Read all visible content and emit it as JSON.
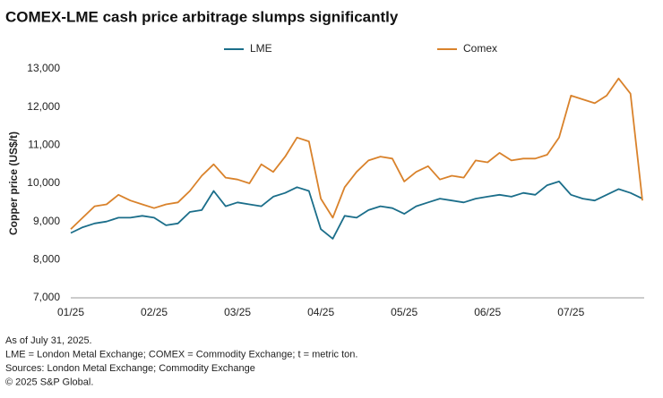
{
  "chart_data": {
    "type": "line",
    "title": "COMEX-LME cash price arbitrage slumps significantly",
    "y_label": "Copper price (US$/t)",
    "categories": [
      "01/25",
      null,
      null,
      null,
      null,
      null,
      null,
      "02/25",
      null,
      null,
      null,
      null,
      null,
      null,
      "03/25",
      null,
      null,
      null,
      null,
      null,
      null,
      "04/25",
      null,
      null,
      null,
      null,
      null,
      null,
      "05/25",
      null,
      null,
      null,
      null,
      null,
      null,
      "06/25",
      null,
      null,
      null,
      null,
      null,
      null,
      "07/25",
      null,
      null,
      null,
      null,
      null,
      null
    ],
    "series": [
      {
        "name": "LME",
        "color": "#1b6e8a",
        "values": [
          8700,
          8850,
          8950,
          9000,
          9100,
          9100,
          9150,
          9100,
          8900,
          8950,
          9250,
          9300,
          9800,
          9400,
          9500,
          9450,
          9400,
          9650,
          9750,
          9900,
          9800,
          8800,
          8550,
          9150,
          9100,
          9300,
          9400,
          9350,
          9200,
          9400,
          9500,
          9600,
          9550,
          9500,
          9600,
          9650,
          9700,
          9650,
          9750,
          9700,
          9950,
          10050,
          9700,
          9600,
          9550,
          9700,
          9850,
          9750,
          9600
        ]
      },
      {
        "name": "Comex",
        "color": "#d9822b",
        "values": [
          8800,
          9100,
          9400,
          9450,
          9700,
          9550,
          9450,
          9350,
          9450,
          9500,
          9800,
          10200,
          10500,
          10150,
          10100,
          10000,
          10500,
          10300,
          10700,
          11200,
          11100,
          9600,
          9100,
          9900,
          10300,
          10600,
          10700,
          10650,
          10050,
          10300,
          10450,
          10100,
          10200,
          10150,
          10600,
          10550,
          10800,
          10600,
          10650,
          10650,
          10750,
          11200,
          12300,
          12200,
          12100,
          12300,
          12750,
          12350,
          9550
        ]
      }
    ],
    "ylim": [
      7000,
      13000
    ],
    "yticks": [
      {
        "value": 7000,
        "label": "7,000"
      },
      {
        "value": 8000,
        "label": "8,000"
      },
      {
        "value": 9000,
        "label": "9,000"
      },
      {
        "value": 10000,
        "label": "10,000"
      },
      {
        "value": 11000,
        "label": "11,000"
      },
      {
        "value": 12000,
        "label": "12,000"
      },
      {
        "value": 13000,
        "label": "13,000"
      }
    ],
    "grid": false,
    "legend": "top",
    "notes": [
      "As of July 31, 2025.",
      "LME = London Metal Exchange; COMEX = Commodity Exchange; t = metric ton.",
      "Sources: London Metal Exchange; Commodity Exchange",
      "© 2025 S&P Global."
    ]
  }
}
